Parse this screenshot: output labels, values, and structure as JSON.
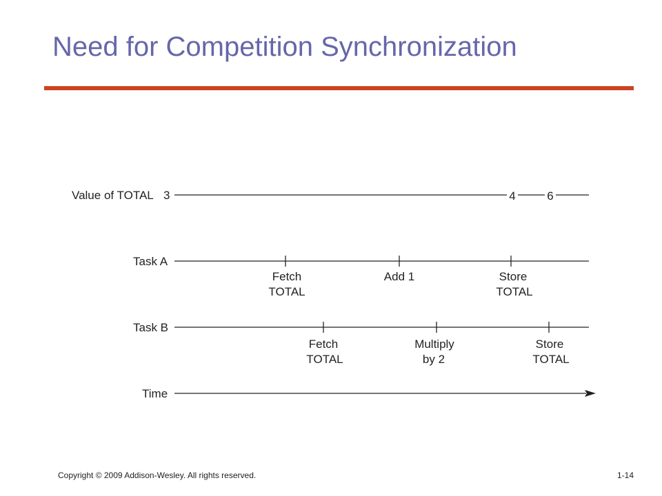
{
  "slide": {
    "title": "Need for Competition Synchronization",
    "accent_color": "#cc4422",
    "title_color": "#6666aa"
  },
  "diagram": {
    "value_row": {
      "label": "Value of TOTAL",
      "initial": "3",
      "value_after_a": "4",
      "value_after_b": "6"
    },
    "task_a": {
      "label": "Task A",
      "steps": [
        {
          "line1": "Fetch",
          "line2": "TOTAL"
        },
        {
          "line1": "Add 1",
          "line2": ""
        },
        {
          "line1": "Store",
          "line2": "TOTAL"
        }
      ]
    },
    "task_b": {
      "label": "Task B",
      "steps": [
        {
          "line1": "Fetch",
          "line2": "TOTAL"
        },
        {
          "line1": "Multiply",
          "line2": "by 2"
        },
        {
          "line1": "Store",
          "line2": "TOTAL"
        }
      ]
    },
    "time_axis": {
      "label": "Time"
    }
  },
  "footer": {
    "copyright": "Copyright © 2009 Addison-Wesley. All rights reserved.",
    "page_number": "1-14"
  }
}
